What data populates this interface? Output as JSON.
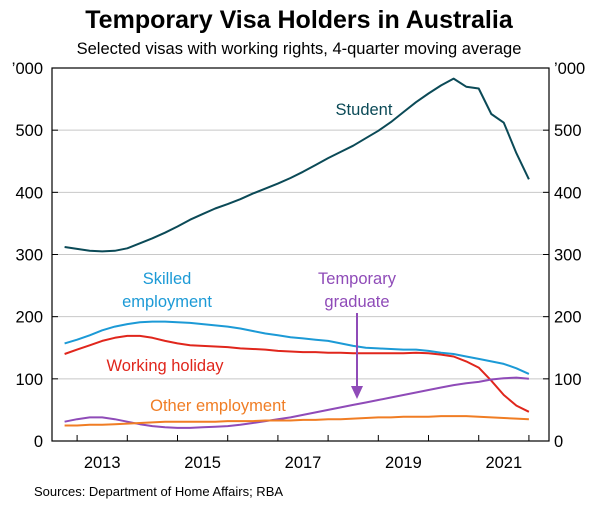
{
  "chart_data": {
    "type": "line",
    "title": "Temporary Visa Holders in Australia",
    "subtitle": "Selected visas with working rights, 4-quarter moving average",
    "y_unit_left": "’000",
    "y_unit_right": "’000",
    "ylim": [
      0,
      600
    ],
    "yticks": [
      0,
      100,
      200,
      300,
      400,
      500
    ],
    "xlim": [
      2012.0,
      2021.9
    ],
    "xticks": [
      2013,
      2015,
      2017,
      2019,
      2021
    ],
    "grid": true,
    "source": "Sources: Department of Home Affairs; RBA",
    "series": [
      {
        "name": "Student",
        "color": "#0b4a57",
        "label_lines": [
          "Student"
        ],
        "x": [
          2012.25,
          2012.5,
          2012.75,
          2013.0,
          2013.25,
          2013.5,
          2013.75,
          2014.0,
          2014.25,
          2014.5,
          2014.75,
          2015.0,
          2015.25,
          2015.5,
          2015.75,
          2016.0,
          2016.25,
          2016.5,
          2016.75,
          2017.0,
          2017.25,
          2017.5,
          2017.75,
          2018.0,
          2018.25,
          2018.5,
          2018.75,
          2019.0,
          2019.25,
          2019.5,
          2019.75,
          2020.0,
          2020.25,
          2020.5,
          2020.75,
          2021.0,
          2021.25,
          2021.5
        ],
        "values": [
          312,
          309,
          306,
          305,
          306,
          310,
          318,
          326,
          335,
          345,
          356,
          365,
          374,
          381,
          389,
          398,
          406,
          414,
          423,
          433,
          444,
          455,
          465,
          475,
          487,
          499,
          513,
          529,
          545,
          559,
          572,
          583,
          570,
          567,
          526,
          512,
          463,
          421
        ]
      },
      {
        "name": "Skilled employment",
        "color": "#1c9ad6",
        "label_lines": [
          "Skilled",
          "employment"
        ],
        "x": [
          2012.25,
          2012.5,
          2012.75,
          2013.0,
          2013.25,
          2013.5,
          2013.75,
          2014.0,
          2014.25,
          2014.5,
          2014.75,
          2015.0,
          2015.25,
          2015.5,
          2015.75,
          2016.0,
          2016.25,
          2016.5,
          2016.75,
          2017.0,
          2017.25,
          2017.5,
          2017.75,
          2018.0,
          2018.25,
          2018.5,
          2018.75,
          2019.0,
          2019.25,
          2019.5,
          2019.75,
          2020.0,
          2020.25,
          2020.5,
          2020.75,
          2021.0,
          2021.25,
          2021.5
        ],
        "values": [
          157,
          163,
          170,
          178,
          184,
          188,
          191,
          192,
          192,
          191,
          190,
          188,
          186,
          184,
          181,
          177,
          173,
          170,
          167,
          165,
          163,
          161,
          157,
          153,
          150,
          149,
          148,
          147,
          147,
          145,
          142,
          140,
          136,
          132,
          128,
          124,
          117,
          108
        ]
      },
      {
        "name": "Working holiday",
        "color": "#e0261c",
        "label_lines": [
          "Working holiday"
        ],
        "x": [
          2012.25,
          2012.5,
          2012.75,
          2013.0,
          2013.25,
          2013.5,
          2013.75,
          2014.0,
          2014.25,
          2014.5,
          2014.75,
          2015.0,
          2015.25,
          2015.5,
          2015.75,
          2016.0,
          2016.25,
          2016.5,
          2016.75,
          2017.0,
          2017.25,
          2017.5,
          2017.75,
          2018.0,
          2018.25,
          2018.5,
          2018.75,
          2019.0,
          2019.25,
          2019.5,
          2019.75,
          2020.0,
          2020.25,
          2020.5,
          2020.75,
          2021.0,
          2021.25,
          2021.5
        ],
        "values": [
          140,
          147,
          154,
          161,
          166,
          169,
          169,
          166,
          161,
          157,
          154,
          153,
          152,
          151,
          149,
          148,
          147,
          145,
          144,
          143,
          143,
          142,
          142,
          141,
          141,
          141,
          141,
          141,
          142,
          141,
          139,
          136,
          128,
          118,
          97,
          74,
          57,
          47
        ]
      },
      {
        "name": "Temporary graduate",
        "color": "#8f4bb8",
        "label_lines": [
          "Temporary",
          "graduate"
        ],
        "x": [
          2012.25,
          2012.5,
          2012.75,
          2013.0,
          2013.25,
          2013.5,
          2013.75,
          2014.0,
          2014.25,
          2014.5,
          2014.75,
          2015.0,
          2015.25,
          2015.5,
          2015.75,
          2016.0,
          2016.25,
          2016.5,
          2016.75,
          2017.0,
          2017.25,
          2017.5,
          2017.75,
          2018.0,
          2018.25,
          2018.5,
          2018.75,
          2019.0,
          2019.25,
          2019.5,
          2019.75,
          2020.0,
          2020.25,
          2020.5,
          2020.75,
          2021.0,
          2021.25,
          2021.5
        ],
        "values": [
          31,
          35,
          38,
          38,
          35,
          31,
          27,
          24,
          22,
          21,
          21,
          22,
          23,
          24,
          26,
          29,
          32,
          35,
          38,
          42,
          46,
          50,
          54,
          58,
          62,
          66,
          70,
          74,
          78,
          82,
          86,
          90,
          93,
          95,
          99,
          101,
          102,
          100
        ]
      },
      {
        "name": "Other employment",
        "color": "#f07d24",
        "label_lines": [
          "Other employment"
        ],
        "x": [
          2012.25,
          2012.5,
          2012.75,
          2013.0,
          2013.25,
          2013.5,
          2013.75,
          2014.0,
          2014.25,
          2014.5,
          2014.75,
          2015.0,
          2015.25,
          2015.5,
          2015.75,
          2016.0,
          2016.25,
          2016.5,
          2016.75,
          2017.0,
          2017.25,
          2017.5,
          2017.75,
          2018.0,
          2018.25,
          2018.5,
          2018.75,
          2019.0,
          2019.25,
          2019.5,
          2019.75,
          2020.0,
          2020.25,
          2020.5,
          2020.75,
          2021.0,
          2021.25,
          2021.5
        ],
        "values": [
          25,
          25,
          26,
          26,
          27,
          28,
          29,
          30,
          31,
          31,
          31,
          31,
          31,
          32,
          32,
          32,
          33,
          33,
          33,
          34,
          34,
          35,
          35,
          36,
          37,
          38,
          38,
          39,
          39,
          39,
          40,
          40,
          40,
          39,
          38,
          37,
          36,
          35
        ]
      }
    ]
  }
}
